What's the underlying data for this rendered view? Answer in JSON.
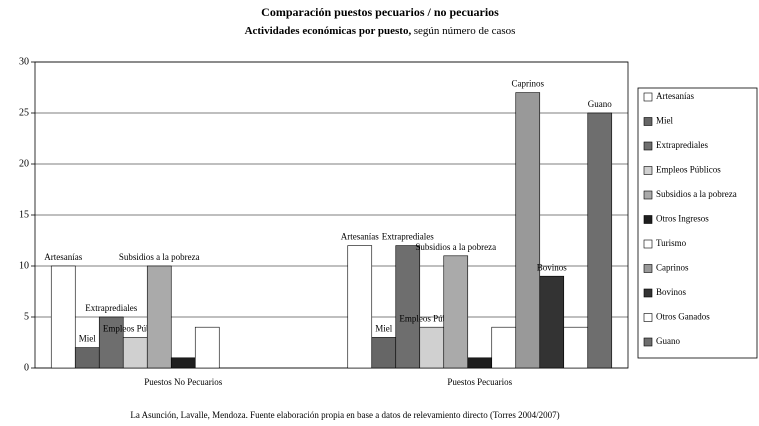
{
  "chart_data": {
    "type": "bar",
    "title": "Comparación puestos pecuarios / no pecuarios",
    "subtitle": [
      "Actividades económicas por puesto,",
      "según número de casos"
    ],
    "footer": "La Asunción, Lavalle, Mendoza. Fuente elaboración propia en base a datos de relevamiento directo (Torres 2004/2007)",
    "categories": [
      "Puestos No Pecuarios",
      "Puestos Pecuarios"
    ],
    "series": [
      {
        "name": "Artesanías",
        "color": "#ffffff",
        "values": [
          10,
          12
        ],
        "value_labels": [
          "Artesanías",
          "Artesanías"
        ]
      },
      {
        "name": "Miel",
        "color": "#666666",
        "values": [
          2,
          3
        ],
        "value_labels": [
          "Miel",
          "Miel"
        ]
      },
      {
        "name": "Extraprediales",
        "color": "#6e6e6e",
        "values": [
          5,
          12
        ],
        "value_labels": [
          "Extraprediales",
          "Extraprediales"
        ]
      },
      {
        "name": "Empleos Públicos",
        "color": "#d0d0d0",
        "values": [
          3,
          4
        ],
        "value_labels": [
          "Empleos Públicos",
          "Empleos Públicos"
        ]
      },
      {
        "name": "Subsidios a la pobreza",
        "color": "#aaaaaa",
        "values": [
          10,
          11
        ],
        "value_labels": [
          "Subsidios a la pobreza",
          "Subsidios a la pobreza"
        ]
      },
      {
        "name": "Otros Ingresos",
        "color": "#1e1e1e",
        "values": [
          1,
          1
        ]
      },
      {
        "name": "Turismo",
        "color": "#ffffff",
        "values": [
          4,
          4
        ]
      },
      {
        "name": "Caprinos",
        "color": "#999999",
        "values": [
          null,
          27
        ],
        "value_labels": [
          null,
          "Caprinos"
        ]
      },
      {
        "name": "Bovinos",
        "color": "#333333",
        "values": [
          null,
          9
        ],
        "value_labels": [
          null,
          "Bovinos"
        ]
      },
      {
        "name": "Otros Ganados",
        "color": "#ffffff",
        "values": [
          null,
          4
        ]
      },
      {
        "name": "Guano",
        "color": "#6e6e6e",
        "values": [
          null,
          25
        ],
        "value_labels": [
          null,
          "Guano"
        ]
      }
    ],
    "ylim": [
      0,
      30
    ],
    "yticks": [
      0,
      5,
      10,
      15,
      20,
      25,
      30
    ],
    "grid": true,
    "legend": "right"
  }
}
